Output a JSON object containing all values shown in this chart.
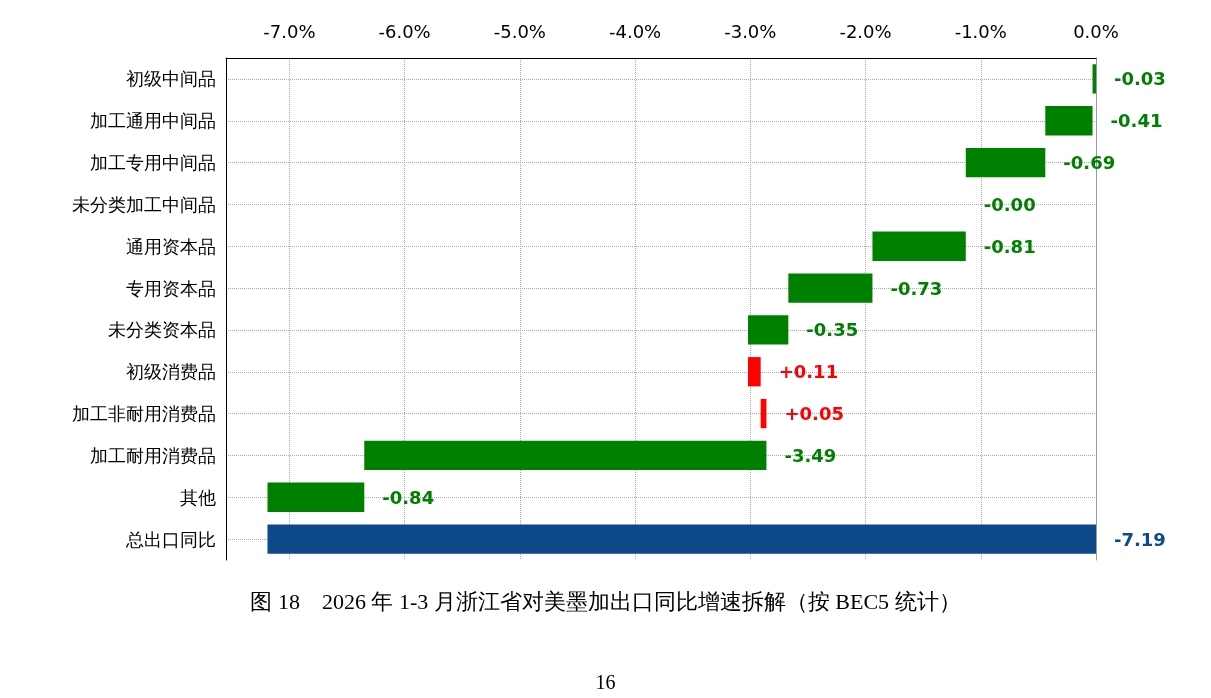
{
  "chart_data": {
    "type": "bar",
    "orientation": "horizontal",
    "title": "图 18　2026 年 1-3 月浙江省对美墨加出口同比增速拆解（按 BEC5 统计）",
    "annotations": [
      "16"
    ],
    "categories": [
      "初级中间品",
      "加工通用中间品",
      "加工专用中间品",
      "未分类加工中间品",
      "通用资本品",
      "专用资本品",
      "未分类资本品",
      "初级消费品",
      "加工非耐用消费品",
      "加工耐用消费品",
      "其他",
      "总出口同比"
    ],
    "values": [
      -0.03,
      -0.41,
      -0.69,
      -0.0,
      -0.81,
      -0.73,
      -0.35,
      0.11,
      0.05,
      -3.49,
      -0.84,
      -7.19
    ],
    "base": [
      0,
      -0.03,
      -0.44,
      -1.13,
      -1.13,
      -1.94,
      -2.67,
      -3.02,
      -2.91,
      -2.86,
      -6.35,
      0
    ],
    "value_labels": [
      "-0.03",
      "-0.41",
      "-0.69",
      "-0.00",
      "-0.81",
      "-0.73",
      "-0.35",
      "+0.11",
      "+0.05",
      "-3.49",
      "-0.84",
      "-7.19"
    ],
    "colors": [
      "#008000",
      "#008000",
      "#008000",
      "#008000",
      "#008000",
      "#008000",
      "#008000",
      "#ff0000",
      "#ff0000",
      "#008000",
      "#008000",
      "#0e4a8a"
    ],
    "xlim": [
      -7.55,
      0
    ],
    "xticks": [
      {
        "value": -7,
        "label": "-7.0%"
      },
      {
        "value": -6,
        "label": "-6.0%"
      },
      {
        "value": -5,
        "label": "-5.0%"
      },
      {
        "value": -4,
        "label": "-4.0%"
      },
      {
        "value": -3,
        "label": "-3.0%"
      },
      {
        "value": -2,
        "label": "-2.0%"
      },
      {
        "value": -1,
        "label": "-1.0%"
      },
      {
        "value": 0,
        "label": "0.0%"
      }
    ],
    "grid": true
  }
}
